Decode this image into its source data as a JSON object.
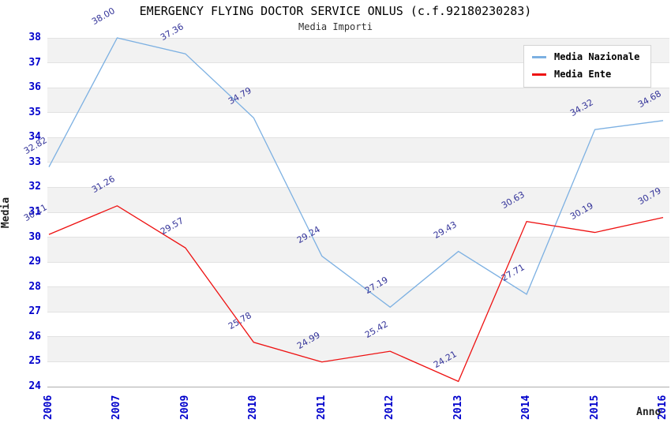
{
  "title": "EMERGENCY FLYING DOCTOR SERVICE ONLUS (c.f.92180230283)",
  "subtitle": "Media Importi",
  "y_axis_title": "Media",
  "x_axis_title": "Anno",
  "legend": {
    "items": [
      {
        "label": "Media Nazionale",
        "color": "#7cb0e2"
      },
      {
        "label": "Media Ente",
        "color": "#ee1111"
      }
    ]
  },
  "colors": {
    "tick_label": "#0000cc",
    "data_label": "#333399",
    "band_gray": "#f2f2f2",
    "gridline": "#e2e2e2",
    "axis_line": "#adadad",
    "national_line": "#7cb0e2",
    "entity_line": "#ee1111"
  },
  "chart_data": {
    "type": "line",
    "title": "EMERGENCY FLYING DOCTOR SERVICE ONLUS (c.f.92180230283)",
    "subtitle": "Media Importi",
    "xlabel": "Anno",
    "ylabel": "Media",
    "categories": [
      "2006",
      "2007",
      "2009",
      "2010",
      "2011",
      "2012",
      "2013",
      "2014",
      "2015",
      "2016"
    ],
    "series": [
      {
        "name": "Media Nazionale",
        "color": "#7cb0e2",
        "values": [
          32.82,
          38.0,
          37.36,
          34.79,
          29.24,
          27.19,
          29.43,
          27.71,
          34.32,
          34.68
        ]
      },
      {
        "name": "Media Ente",
        "color": "#ee1111",
        "values": [
          30.11,
          31.26,
          29.57,
          25.78,
          24.99,
          25.42,
          24.21,
          30.63,
          30.19,
          30.79
        ]
      }
    ],
    "ylim": [
      24,
      38
    ],
    "y_tick_step": 1,
    "grid": true,
    "banded_background": true,
    "legend_position": "top-right",
    "point_labels": true
  }
}
